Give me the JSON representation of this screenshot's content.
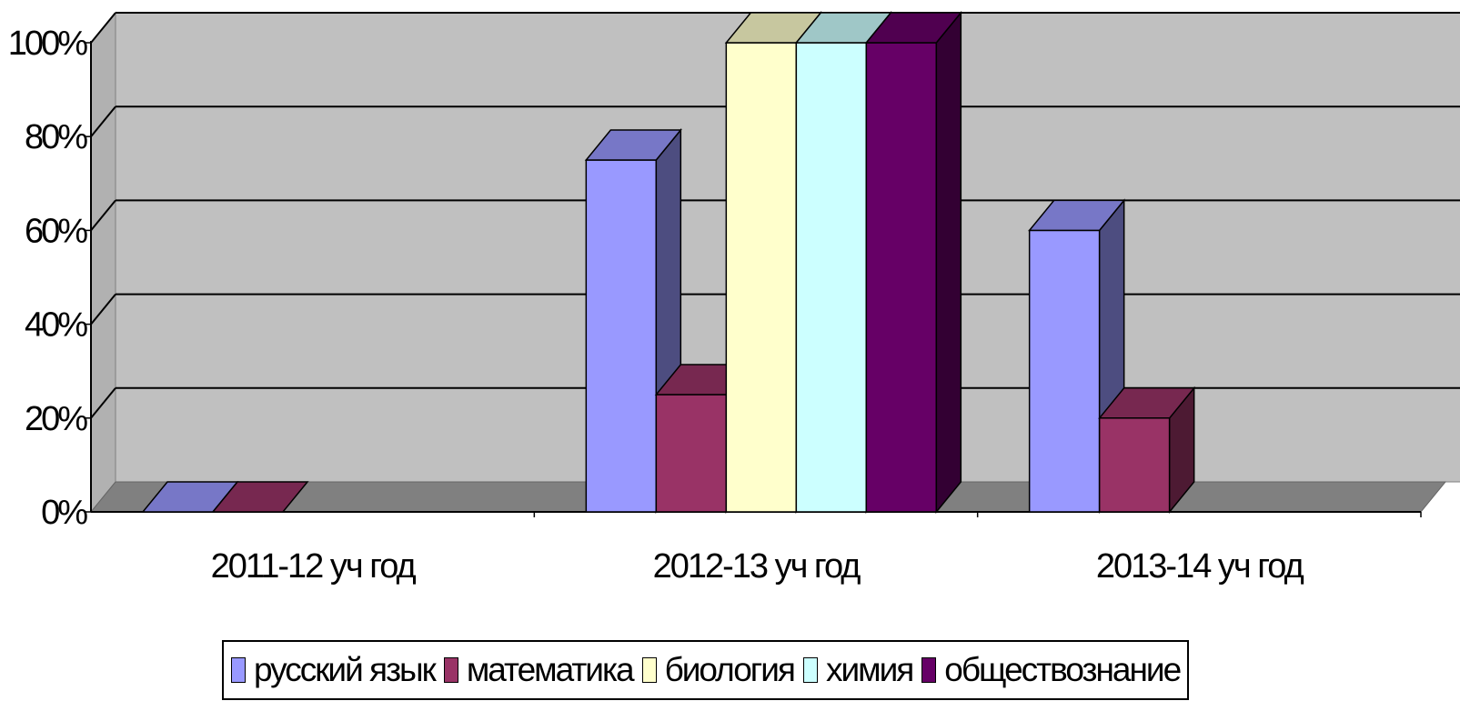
{
  "chart_data": {
    "type": "bar",
    "categories": [
      "2011-12 уч год",
      "2012-13 уч год",
      "2013-14 уч год"
    ],
    "series": [
      {
        "name": "русский язык",
        "color": "#9999ff",
        "values": [
          0,
          75,
          60
        ]
      },
      {
        "name": "математика",
        "color": "#993366",
        "values": [
          0,
          25,
          20
        ]
      },
      {
        "name": "биология",
        "color": "#ffffcc",
        "values": [
          null,
          100,
          null
        ]
      },
      {
        "name": "химия",
        "color": "#ccffff",
        "values": [
          null,
          100,
          null
        ]
      },
      {
        "name": "обществознание",
        "color": "#660066",
        "values": [
          null,
          100,
          null
        ]
      }
    ],
    "y_ticks": [
      "0%",
      "20%",
      "40%",
      "60%",
      "80%",
      "100%"
    ],
    "ylim": [
      0,
      100
    ],
    "grid": true,
    "legend_position": "bottom",
    "background_color": "#c0c0c0",
    "floor_color": "#808080"
  }
}
